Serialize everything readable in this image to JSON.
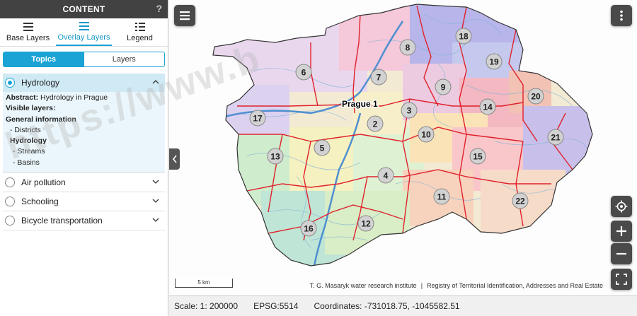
{
  "sidebar": {
    "title": "CONTENT",
    "help": "?",
    "tabs": [
      {
        "label": "Base Layers"
      },
      {
        "label": "Overlay Layers"
      },
      {
        "label": "Legend"
      }
    ],
    "segments": {
      "topics": "Topics",
      "layers": "Layers"
    },
    "topics": [
      {
        "label": "Hydrology",
        "selected": true
      },
      {
        "label": "Air pollution"
      },
      {
        "label": "Schooling"
      },
      {
        "label": "Bicycle transportation"
      }
    ],
    "details": {
      "abstract_label": "Abstract:",
      "abstract_value": " Hydrology in Prague",
      "visible_layers": "Visible layers:",
      "general_info": "General information",
      "districts": "- Districts",
      "hydrology": "Hydrology",
      "streams": "- Streams",
      "basins": "- Basins"
    }
  },
  "map": {
    "city_label": "Prague 1",
    "districts": [
      "2",
      "3",
      "4",
      "5",
      "6",
      "7",
      "8",
      "9",
      "10",
      "11",
      "12",
      "13",
      "14",
      "15",
      "16",
      "17",
      "18",
      "19",
      "20",
      "21",
      "22"
    ],
    "scale_bar_label": "5 km",
    "attribution_1": "T. G. Masaryk water research institute",
    "attribution_sep": "|",
    "attribution_2": "Registry of Territorial Identification, Addresses and Real Estate"
  },
  "statusbar": {
    "scale": "Scale: 1: 200000",
    "epsg": "EPSG:5514",
    "coords": "Coordinates: -731018.75, -1045582.51"
  },
  "watermark": "https://www.b",
  "colors": {
    "accent": "#1aa3d4",
    "header": "#424242",
    "district_border": "#e0212b"
  }
}
